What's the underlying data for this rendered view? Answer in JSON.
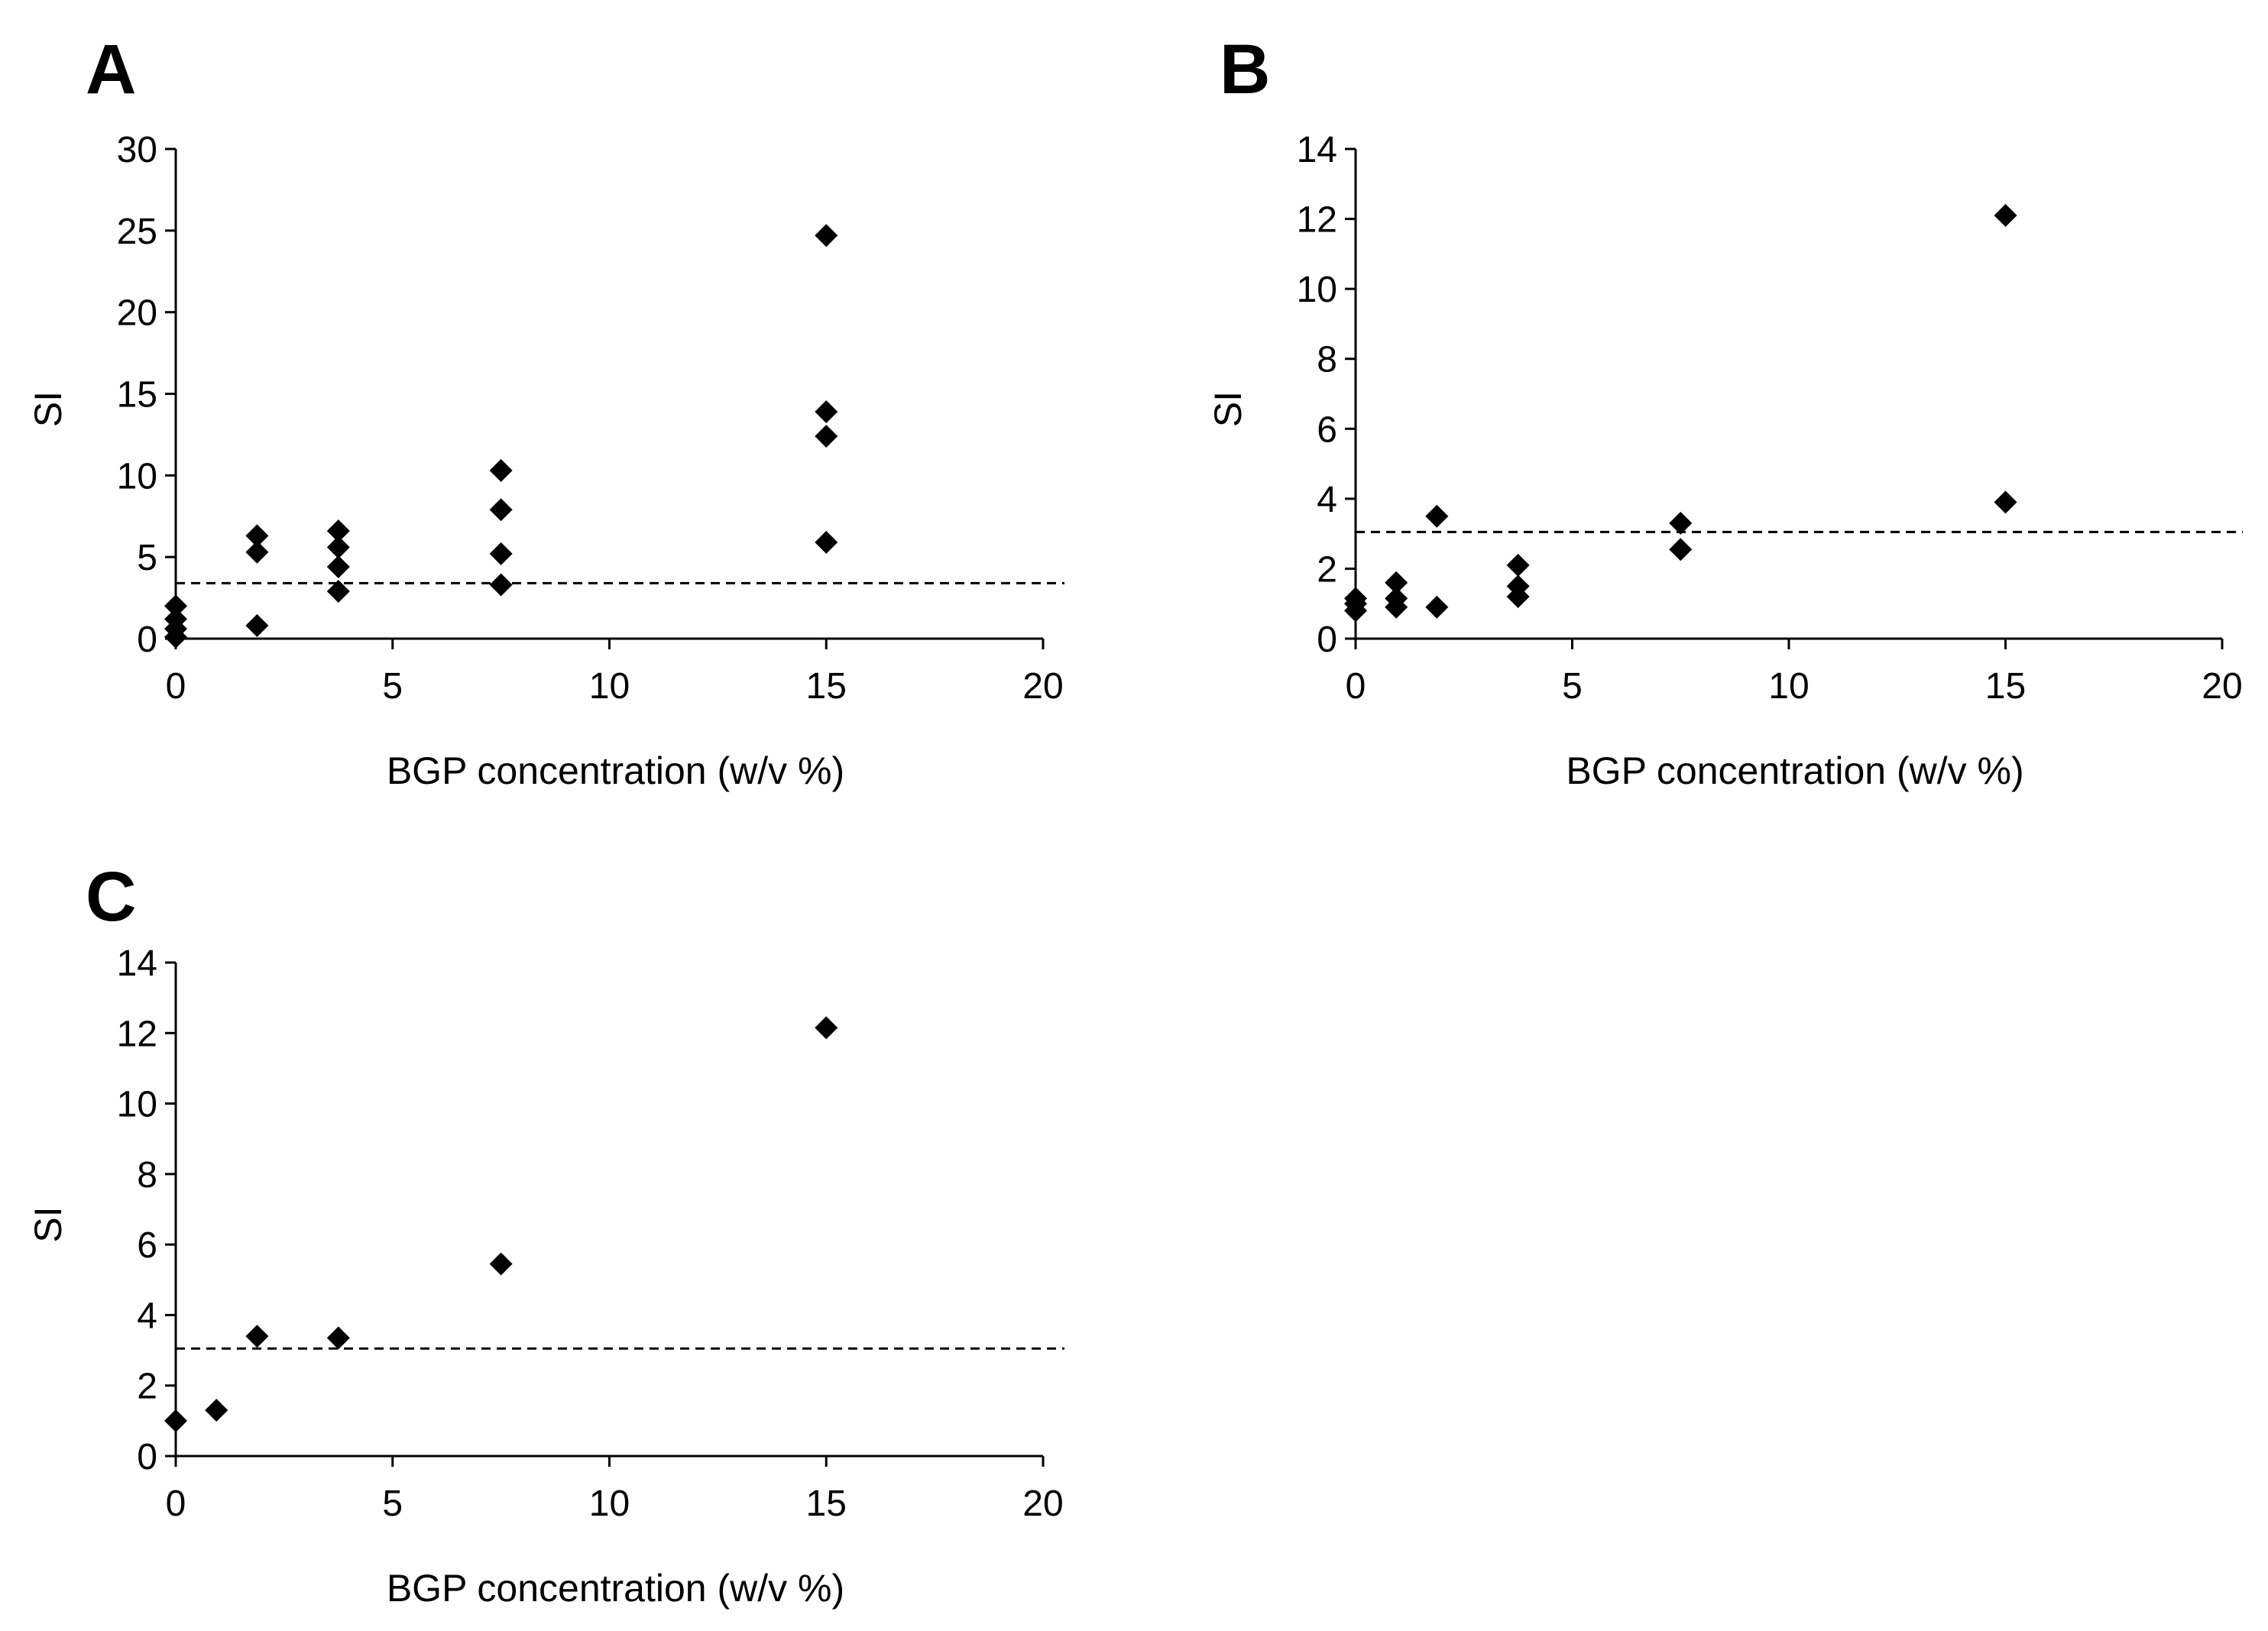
{
  "chart_data": [
    {
      "panel": "A",
      "type": "scatter",
      "title": "",
      "xlabel": "BGP concentration (w/v %)",
      "ylabel": "SI",
      "xlim": [
        0,
        20
      ],
      "ylim": [
        0,
        30
      ],
      "xticks": [
        0,
        5,
        10,
        15,
        20
      ],
      "yticks": [
        0,
        5,
        10,
        15,
        20,
        25,
        30
      ],
      "threshold": 3.4,
      "marker": "diamond",
      "points": [
        {
          "x": 0,
          "y": 2.0
        },
        {
          "x": 0,
          "y": 1.2
        },
        {
          "x": 0,
          "y": 0.6
        },
        {
          "x": 0,
          "y": 0.1
        },
        {
          "x": 1.875,
          "y": 6.3
        },
        {
          "x": 1.875,
          "y": 5.3
        },
        {
          "x": 1.875,
          "y": 0.8
        },
        {
          "x": 3.75,
          "y": 6.6
        },
        {
          "x": 3.75,
          "y": 5.6
        },
        {
          "x": 3.75,
          "y": 4.4
        },
        {
          "x": 3.75,
          "y": 2.9
        },
        {
          "x": 7.5,
          "y": 10.3
        },
        {
          "x": 7.5,
          "y": 7.9
        },
        {
          "x": 7.5,
          "y": 5.2
        },
        {
          "x": 7.5,
          "y": 3.3
        },
        {
          "x": 15,
          "y": 24.7
        },
        {
          "x": 15,
          "y": 13.9
        },
        {
          "x": 15,
          "y": 12.4
        },
        {
          "x": 15,
          "y": 5.9
        }
      ]
    },
    {
      "panel": "B",
      "type": "scatter",
      "title": "",
      "xlabel": "BGP concentration (w/v %)",
      "ylabel": "SI",
      "xlim": [
        0,
        20
      ],
      "ylim": [
        0,
        14
      ],
      "xticks": [
        0,
        5,
        10,
        15,
        20
      ],
      "yticks": [
        0,
        2,
        4,
        6,
        8,
        10,
        12,
        14
      ],
      "threshold": 3.05,
      "marker": "diamond",
      "points": [
        {
          "x": 0,
          "y": 1.15
        },
        {
          "x": 0,
          "y": 1.0
        },
        {
          "x": 0,
          "y": 0.8
        },
        {
          "x": 0.9375,
          "y": 1.6
        },
        {
          "x": 0.9375,
          "y": 1.15
        },
        {
          "x": 0.9375,
          "y": 0.9
        },
        {
          "x": 1.875,
          "y": 3.5
        },
        {
          "x": 1.875,
          "y": 0.9
        },
        {
          "x": 3.75,
          "y": 2.1
        },
        {
          "x": 3.75,
          "y": 1.5
        },
        {
          "x": 3.75,
          "y": 1.2
        },
        {
          "x": 7.5,
          "y": 3.3
        },
        {
          "x": 7.5,
          "y": 2.55
        },
        {
          "x": 15,
          "y": 12.1
        },
        {
          "x": 15,
          "y": 3.9
        }
      ]
    },
    {
      "panel": "C",
      "type": "scatter",
      "title": "",
      "xlabel": "BGP concentration (w/v %)",
      "ylabel": "SI",
      "xlim": [
        0,
        20
      ],
      "ylim": [
        0,
        14
      ],
      "xticks": [
        0,
        5,
        10,
        15,
        20
      ],
      "yticks": [
        0,
        2,
        4,
        6,
        8,
        10,
        12,
        14
      ],
      "threshold": 3.05,
      "marker": "diamond",
      "points": [
        {
          "x": 0,
          "y": 1.0
        },
        {
          "x": 0.9375,
          "y": 1.3
        },
        {
          "x": 1.875,
          "y": 3.4
        },
        {
          "x": 3.75,
          "y": 3.35
        },
        {
          "x": 7.5,
          "y": 5.45
        },
        {
          "x": 15,
          "y": 12.15
        }
      ]
    }
  ]
}
